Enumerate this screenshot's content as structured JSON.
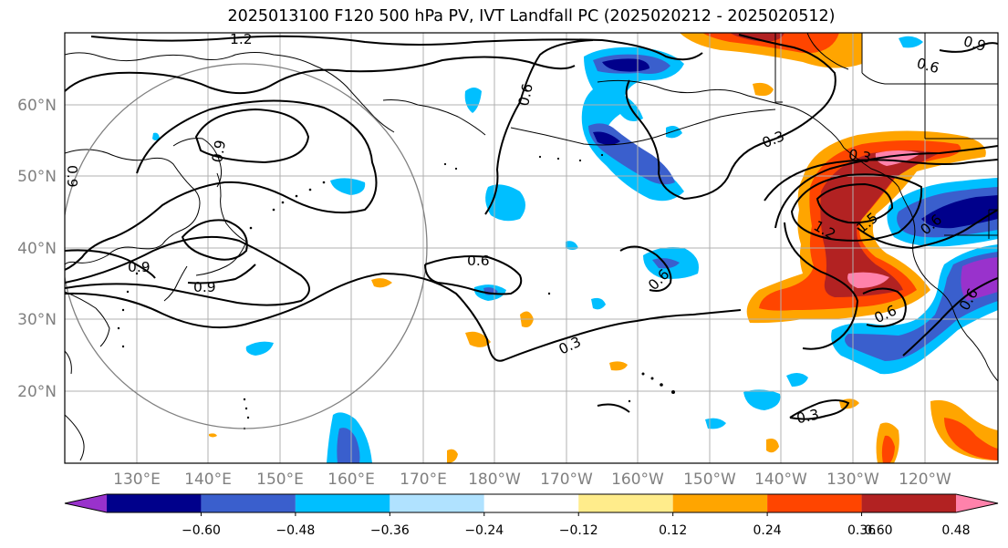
{
  "title": "2025013100 F120 500 hPa PV, IVT Landfall PC (2025020212 - 2025020512)",
  "lat_labels": [
    "60°N",
    "50°N",
    "40°N",
    "30°N",
    "20°N"
  ],
  "lon_labels": [
    "130°E",
    "140°E",
    "150°E",
    "160°E",
    "170°E",
    "180°W",
    "170°W",
    "160°W",
    "150°W",
    "140°W",
    "130°W",
    "120°W"
  ],
  "contour_labels": [
    "1.2",
    "0.6",
    "0.6",
    "0.6",
    "0.3",
    "0.6",
    "0.3",
    "1.2",
    "1.5",
    "0.6",
    "0.6",
    "0.6",
    "0.9",
    "0.9",
    "0.9",
    "0.9",
    "0.3",
    "0.3",
    "0.9"
  ],
  "colorbar": {
    "tick_labels": [
      "−0.60",
      "−0.48",
      "−0.36",
      "−0.24",
      "−0.12",
      "0.12",
      "0.24",
      "0.36",
      "0.48",
      "0.60"
    ],
    "colors": [
      "#9932cc",
      "#00008b",
      "#3a5fcd",
      "#00bfff",
      "#b0e2ff",
      "#ffffff",
      "#ffec8b",
      "#ffa500",
      "#ff4500",
      "#b22222",
      "#ff82ab"
    ]
  }
}
